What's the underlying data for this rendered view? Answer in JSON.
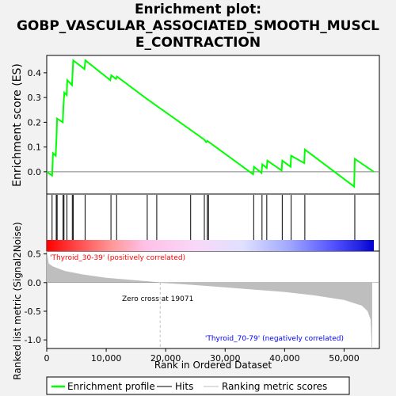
{
  "title_lines": [
    "Enrichment plot:",
    "GOBP_VASCULAR_ASSOCIATED_SMOOTH_MUSCL",
    "E_CONTRACTION"
  ],
  "colors": {
    "enrichment": "#00ff00",
    "hits": "#000000",
    "ranking": "#bebebe",
    "positive_label": "#ff0000",
    "negative_label": "#0000ff"
  },
  "chart_data": {
    "type": "line",
    "x_range": [
      0,
      55000
    ],
    "x_ticks": [
      0,
      10000,
      20000,
      30000,
      40000,
      50000
    ],
    "x_tick_labels": [
      "0",
      "10,000",
      "20,000",
      "30,000",
      "40,000",
      "50,000"
    ],
    "xlabel": "Rank in Ordered Dataset",
    "enrichment": {
      "ylabel": "Enrichment score (ES)",
      "ylim": [
        -0.09,
        0.47
      ],
      "y_ticks": [
        0.0,
        0.1,
        0.2,
        0.3,
        0.4
      ],
      "y_tick_labels": [
        "0.0",
        "0.1",
        "0.2",
        "0.3",
        "0.4"
      ],
      "points": [
        [
          0,
          0.0
        ],
        [
          900,
          -0.015
        ],
        [
          1050,
          0.075
        ],
        [
          1500,
          0.065
        ],
        [
          1650,
          0.14
        ],
        [
          1750,
          0.215
        ],
        [
          2700,
          0.2
        ],
        [
          2800,
          0.26
        ],
        [
          2950,
          0.32
        ],
        [
          3350,
          0.31
        ],
        [
          3450,
          0.37
        ],
        [
          4250,
          0.35
        ],
        [
          4350,
          0.4
        ],
        [
          4450,
          0.45
        ],
        [
          6350,
          0.415
        ],
        [
          6500,
          0.45
        ],
        [
          10700,
          0.37
        ],
        [
          10850,
          0.39
        ],
        [
          11650,
          0.375
        ],
        [
          11800,
          0.385
        ],
        [
          16800,
          0.295
        ],
        [
          26500,
          0.13
        ],
        [
          26800,
          0.12
        ],
        [
          27000,
          0.125
        ],
        [
          34700,
          -0.01
        ],
        [
          34850,
          0.02
        ],
        [
          36100,
          -0.005
        ],
        [
          36250,
          0.03
        ],
        [
          37000,
          0.015
        ],
        [
          37100,
          0.045
        ],
        [
          39500,
          0.005
        ],
        [
          39600,
          0.045
        ],
        [
          41000,
          0.02
        ],
        [
          41100,
          0.065
        ],
        [
          43300,
          0.035
        ],
        [
          43400,
          0.09
        ],
        [
          51700,
          -0.06
        ],
        [
          51800,
          0.052
        ],
        [
          55000,
          0.0
        ]
      ]
    },
    "hits": [
      900,
      1600,
      1750,
      2750,
      2900,
      3400,
      4300,
      4450,
      6450,
      10800,
      11750,
      16900,
      18500,
      24200,
      26500,
      27000,
      27200,
      34800,
      36200,
      37000,
      39600,
      41100,
      43400,
      51800
    ],
    "ranking": {
      "ylabel": "Ranked list metric (Signal2Noise)",
      "ylim": [
        -1.15,
        0.55
      ],
      "y_ticks": [
        0.5,
        0.0,
        -0.5,
        -1.0
      ],
      "y_tick_labels": [
        "0.5",
        "0.0",
        "-0.5",
        "-1.0"
      ],
      "points": [
        [
          0,
          0.55
        ],
        [
          300,
          0.33
        ],
        [
          1000,
          0.28
        ],
        [
          3000,
          0.2
        ],
        [
          6000,
          0.14
        ],
        [
          10000,
          0.08
        ],
        [
          14000,
          0.045
        ],
        [
          19071,
          0.0
        ],
        [
          25000,
          -0.04
        ],
        [
          30000,
          -0.08
        ],
        [
          35000,
          -0.12
        ],
        [
          40000,
          -0.16
        ],
        [
          45000,
          -0.22
        ],
        [
          50000,
          -0.3
        ],
        [
          53000,
          -0.4
        ],
        [
          54000,
          -0.5
        ],
        [
          54500,
          -0.65
        ],
        [
          54700,
          -1.15
        ]
      ],
      "zero_cross": 19071,
      "zero_cross_label": "Zero cross at 19071",
      "positive_label": "'Thyroid_30-39' (positively correlated)",
      "negative_label": "'Thyroid_70-79' (negatively correlated)"
    },
    "legend": {
      "position": "bottom",
      "items": [
        "Enrichment profile",
        "Hits",
        "Ranking metric scores"
      ]
    }
  }
}
